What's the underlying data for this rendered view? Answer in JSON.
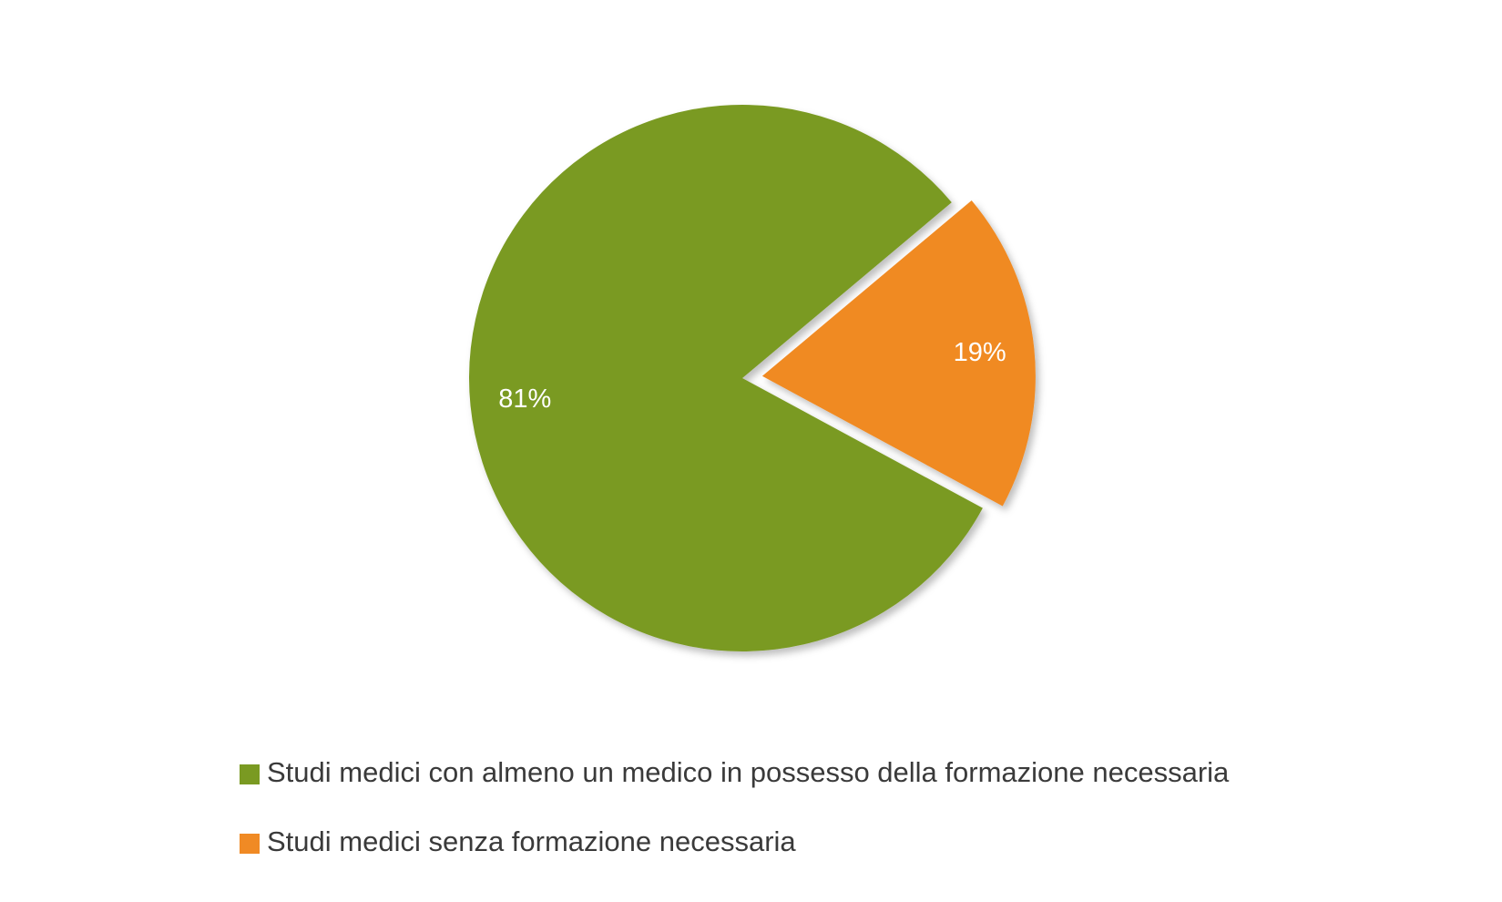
{
  "chart_data": {
    "type": "pie",
    "categories": [
      "Studi medici con almeno un medico in possesso della formazione necessaria",
      "Studi medici senza formazione necessaria"
    ],
    "values": [
      81,
      19
    ],
    "value_labels": [
      "81%",
      "19%"
    ],
    "colors": [
      "#7a9a22",
      "#f08a24"
    ],
    "legend": "bottom"
  }
}
